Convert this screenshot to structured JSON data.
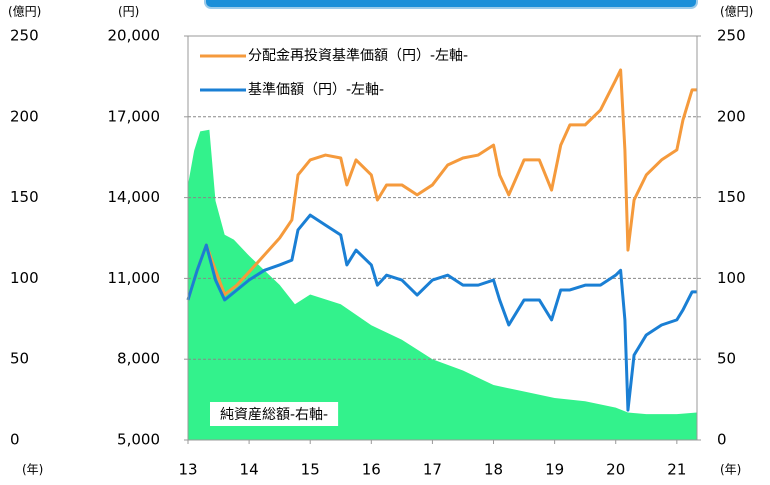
{
  "chart_data": {
    "type": "line",
    "ylabel": "(円)",
    "y2label": "(億円)",
    "xlabel": "(年)",
    "xlim": [
      13,
      21.33
    ],
    "xticks": [
      13,
      14,
      15,
      16,
      17,
      18,
      19,
      20,
      21
    ],
    "ylim": [
      5000,
      20000
    ],
    "yticks": [
      {
        "value": 5000,
        "label": "5,000"
      },
      {
        "value": 8000,
        "label": "8,000"
      },
      {
        "value": 11000,
        "label": "11,000"
      },
      {
        "value": 14000,
        "label": "14,000"
      },
      {
        "value": 17000,
        "label": "17,000"
      },
      {
        "value": 20000,
        "label": "20,000"
      }
    ],
    "y2lim": [
      0,
      250
    ],
    "y2ticks": [
      0,
      50,
      100,
      150,
      200,
      250
    ],
    "grid": true,
    "legend": "upper left",
    "x": [
      13.0,
      13.15,
      13.3,
      13.45,
      13.6,
      13.8,
      14.0,
      14.25,
      14.5,
      14.7,
      14.8,
      15.0,
      15.25,
      15.5,
      15.6,
      15.75,
      16.0,
      16.1,
      16.25,
      16.5,
      16.75,
      17.0,
      17.25,
      17.5,
      17.75,
      18.0,
      18.1,
      18.25,
      18.5,
      18.75,
      18.95,
      19.1,
      19.25,
      19.5,
      19.75,
      20.0,
      20.08,
      20.15,
      20.2,
      20.3,
      20.5,
      20.75,
      21.0,
      21.1,
      21.25,
      21.33
    ],
    "series": [
      {
        "name": "純資産総額-右軸-",
        "type": "area",
        "axis": "y2",
        "color": "#33f28c",
        "x": [
          13.0,
          13.1,
          13.2,
          13.35,
          13.45,
          13.6,
          13.75,
          14.0,
          14.25,
          14.5,
          14.75,
          15.0,
          15.25,
          15.5,
          16.0,
          16.5,
          17.0,
          17.5,
          18.0,
          18.5,
          19.0,
          19.5,
          20.0,
          20.2,
          20.5,
          21.0,
          21.33
        ],
        "values": [
          158,
          179,
          191,
          192,
          148,
          127,
          124,
          114,
          105,
          96,
          84,
          90,
          87,
          84,
          71,
          62,
          50,
          43,
          34,
          30,
          26,
          24,
          20,
          17,
          16,
          16,
          17
        ]
      },
      {
        "name": "分配金再投資基準価額（円）-左軸-",
        "color": "#f59a3c",
        "values": [
          10200,
          11300,
          12240,
          11300,
          10400,
          10750,
          11240,
          11870,
          12500,
          13170,
          14840,
          15400,
          15580,
          15470,
          14470,
          15400,
          14840,
          13910,
          14470,
          14470,
          14100,
          14470,
          15210,
          15470,
          15580,
          15950,
          14840,
          14100,
          15400,
          15400,
          14280,
          15950,
          16700,
          16700,
          17250,
          18370,
          18740,
          15770,
          12050,
          13910,
          14840,
          15400,
          15770,
          16880,
          18000,
          18000
        ]
      },
      {
        "name": "基準価額（円）-左軸-",
        "color": "#1a7fd4",
        "values": [
          10200,
          11300,
          12240,
          10940,
          10200,
          10570,
          10940,
          11300,
          11500,
          11680,
          12800,
          13350,
          12980,
          12610,
          11500,
          12050,
          11500,
          10750,
          11120,
          10940,
          10380,
          10940,
          11120,
          10750,
          10750,
          10940,
          10200,
          9270,
          10200,
          10200,
          9460,
          10570,
          10570,
          10750,
          10750,
          11120,
          11300,
          9460,
          6110,
          8150,
          8900,
          9270,
          9460,
          9830,
          10500,
          10500
        ]
      }
    ]
  }
}
